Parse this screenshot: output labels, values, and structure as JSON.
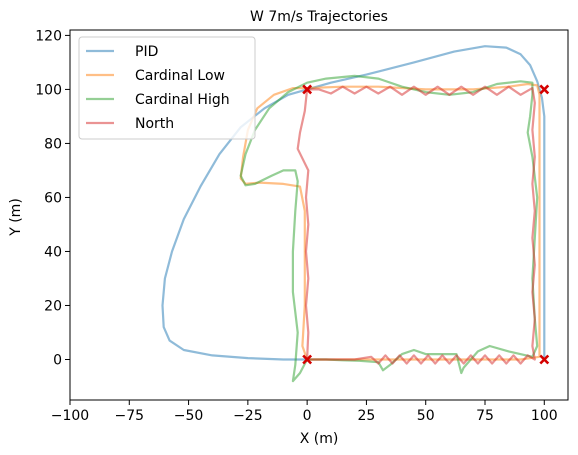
{
  "chart_data": {
    "type": "line",
    "title": "W 7m/s Trajectories",
    "xlabel": "X (m)",
    "ylabel": "Y (m)",
    "xlim": [
      -100,
      110
    ],
    "ylim": [
      -15,
      122
    ],
    "xticks": [
      -100,
      -75,
      -50,
      -25,
      0,
      25,
      50,
      75,
      100
    ],
    "yticks": [
      0,
      20,
      40,
      60,
      80,
      100,
      120
    ],
    "grid": false,
    "legend_position": "top-left",
    "series": [
      {
        "name": "PID",
        "color": "#1f77b4",
        "points": [
          [
            0,
            0
          ],
          [
            -10,
            0
          ],
          [
            -25,
            0.5
          ],
          [
            -40,
            1.5
          ],
          [
            -52,
            3.5
          ],
          [
            -58,
            7
          ],
          [
            -60.5,
            12
          ],
          [
            -61,
            20
          ],
          [
            -60,
            30
          ],
          [
            -57,
            40
          ],
          [
            -52,
            52
          ],
          [
            -45,
            64
          ],
          [
            -37,
            76
          ],
          [
            -28,
            86
          ],
          [
            -18,
            93
          ],
          [
            -8,
            98
          ],
          [
            0,
            100
          ],
          [
            10,
            102.5
          ],
          [
            25,
            105.5
          ],
          [
            45,
            110
          ],
          [
            62,
            114
          ],
          [
            75,
            116
          ],
          [
            84,
            115.5
          ],
          [
            90,
            113
          ],
          [
            94,
            109
          ],
          [
            97,
            103
          ],
          [
            99,
            97
          ],
          [
            100,
            90
          ],
          [
            100,
            60
          ],
          [
            100,
            30
          ],
          [
            100,
            5
          ],
          [
            100,
            0
          ]
        ]
      },
      {
        "name": "Cardinal Low",
        "color": "#ff7f0e",
        "points": [
          [
            0,
            0
          ],
          [
            -2,
            5
          ],
          [
            -1,
            20
          ],
          [
            -1,
            40
          ],
          [
            -1,
            55
          ],
          [
            -3,
            64
          ],
          [
            -10,
            65
          ],
          [
            -20,
            65.5
          ],
          [
            -26,
            65
          ],
          [
            -28,
            67
          ],
          [
            -27,
            75
          ],
          [
            -25,
            85
          ],
          [
            -21,
            93
          ],
          [
            -14,
            98
          ],
          [
            -6,
            100.5
          ],
          [
            0,
            100.5
          ],
          [
            15,
            101
          ],
          [
            30,
            101
          ],
          [
            50,
            100
          ],
          [
            70,
            100
          ],
          [
            85,
            101
          ],
          [
            93,
            102
          ],
          [
            97,
            101.5
          ],
          [
            98,
            98
          ],
          [
            98,
            80
          ],
          [
            98,
            60
          ],
          [
            98,
            40
          ],
          [
            98,
            20
          ],
          [
            98,
            5
          ],
          [
            98,
            1
          ],
          [
            90,
            0
          ],
          [
            70,
            0
          ],
          [
            50,
            0
          ],
          [
            30,
            0
          ],
          [
            10,
            0
          ],
          [
            0,
            0
          ]
        ]
      },
      {
        "name": "Cardinal High",
        "color": "#2ca02c",
        "points": [
          [
            0,
            0
          ],
          [
            -3,
            -5
          ],
          [
            -6,
            -8
          ],
          [
            -5,
            -2
          ],
          [
            -4,
            10
          ],
          [
            -6,
            25
          ],
          [
            -6,
            40
          ],
          [
            -5,
            55
          ],
          [
            -4,
            66
          ],
          [
            -5,
            70
          ],
          [
            -10,
            70
          ],
          [
            -15,
            68
          ],
          [
            -22,
            65
          ],
          [
            -26,
            64.5
          ],
          [
            -28,
            68
          ],
          [
            -26,
            76
          ],
          [
            -22,
            85
          ],
          [
            -16,
            93
          ],
          [
            -8,
            99
          ],
          [
            0,
            102.5
          ],
          [
            8,
            104
          ],
          [
            20,
            105
          ],
          [
            30,
            104
          ],
          [
            40,
            101
          ],
          [
            50,
            99
          ],
          [
            60,
            98
          ],
          [
            70,
            99
          ],
          [
            80,
            102
          ],
          [
            90,
            103
          ],
          [
            95,
            102.5
          ],
          [
            95,
            98
          ],
          [
            94,
            90
          ],
          [
            93,
            84
          ],
          [
            95,
            75
          ],
          [
            97,
            60
          ],
          [
            96,
            45
          ],
          [
            95,
            30
          ],
          [
            96,
            15
          ],
          [
            97,
            5
          ],
          [
            95,
            1
          ],
          [
            85,
            3
          ],
          [
            77,
            5
          ],
          [
            72,
            3
          ],
          [
            66,
            -3
          ],
          [
            65,
            -5
          ],
          [
            63,
            2
          ],
          [
            58,
            2
          ],
          [
            50,
            2
          ],
          [
            45,
            3.5
          ],
          [
            40,
            2
          ],
          [
            35,
            -2
          ],
          [
            32,
            -4
          ],
          [
            30,
            -1
          ],
          [
            22,
            -0.5
          ],
          [
            15,
            -0.3
          ],
          [
            8,
            0
          ],
          [
            0,
            0
          ]
        ]
      },
      {
        "name": "North",
        "color": "#d62728",
        "points": [
          [
            0,
            0
          ],
          [
            0.5,
            10
          ],
          [
            -0.5,
            20
          ],
          [
            0.5,
            30
          ],
          [
            -0.5,
            40
          ],
          [
            0.5,
            50
          ],
          [
            -0.5,
            60
          ],
          [
            0.5,
            70
          ],
          [
            -4,
            78
          ],
          [
            -3,
            84
          ],
          [
            -1,
            92
          ],
          [
            0,
            100
          ],
          [
            5,
            100
          ],
          [
            10,
            98.5
          ],
          [
            15,
            101
          ],
          [
            20,
            98.5
          ],
          [
            25,
            101
          ],
          [
            30,
            98.5
          ],
          [
            35,
            101
          ],
          [
            40,
            98
          ],
          [
            45,
            101
          ],
          [
            50,
            98
          ],
          [
            55,
            101
          ],
          [
            60,
            98
          ],
          [
            65,
            101
          ],
          [
            70,
            98
          ],
          [
            75,
            101
          ],
          [
            80,
            98
          ],
          [
            85,
            101
          ],
          [
            90,
            98
          ],
          [
            95,
            100.5
          ],
          [
            96,
            95
          ],
          [
            95,
            85
          ],
          [
            96,
            75
          ],
          [
            95,
            65
          ],
          [
            96,
            55
          ],
          [
            95,
            45
          ],
          [
            96,
            35
          ],
          [
            95,
            25
          ],
          [
            96,
            15
          ],
          [
            95,
            5
          ],
          [
            96,
            0
          ],
          [
            93,
            1.5
          ],
          [
            90,
            -1.5
          ],
          [
            87,
            1.5
          ],
          [
            84,
            -1.5
          ],
          [
            81,
            1.5
          ],
          [
            78,
            -1.5
          ],
          [
            75,
            1.5
          ],
          [
            72,
            -1.5
          ],
          [
            69,
            1.5
          ],
          [
            66,
            -1.5
          ],
          [
            63,
            1.5
          ],
          [
            60,
            -1.5
          ],
          [
            57,
            1.5
          ],
          [
            54,
            -1.5
          ],
          [
            51,
            1.5
          ],
          [
            48,
            -1.5
          ],
          [
            45,
            1.5
          ],
          [
            42,
            -1.5
          ],
          [
            39,
            1.5
          ],
          [
            36,
            -1.5
          ],
          [
            33,
            1.5
          ],
          [
            30,
            -1.5
          ],
          [
            27,
            1
          ],
          [
            20,
            0
          ],
          [
            10,
            0
          ],
          [
            0,
            0
          ]
        ]
      }
    ],
    "waypoints": {
      "color": "#d40000",
      "points": [
        [
          0,
          0
        ],
        [
          0,
          100
        ],
        [
          100,
          100
        ],
        [
          100,
          0
        ]
      ]
    }
  }
}
